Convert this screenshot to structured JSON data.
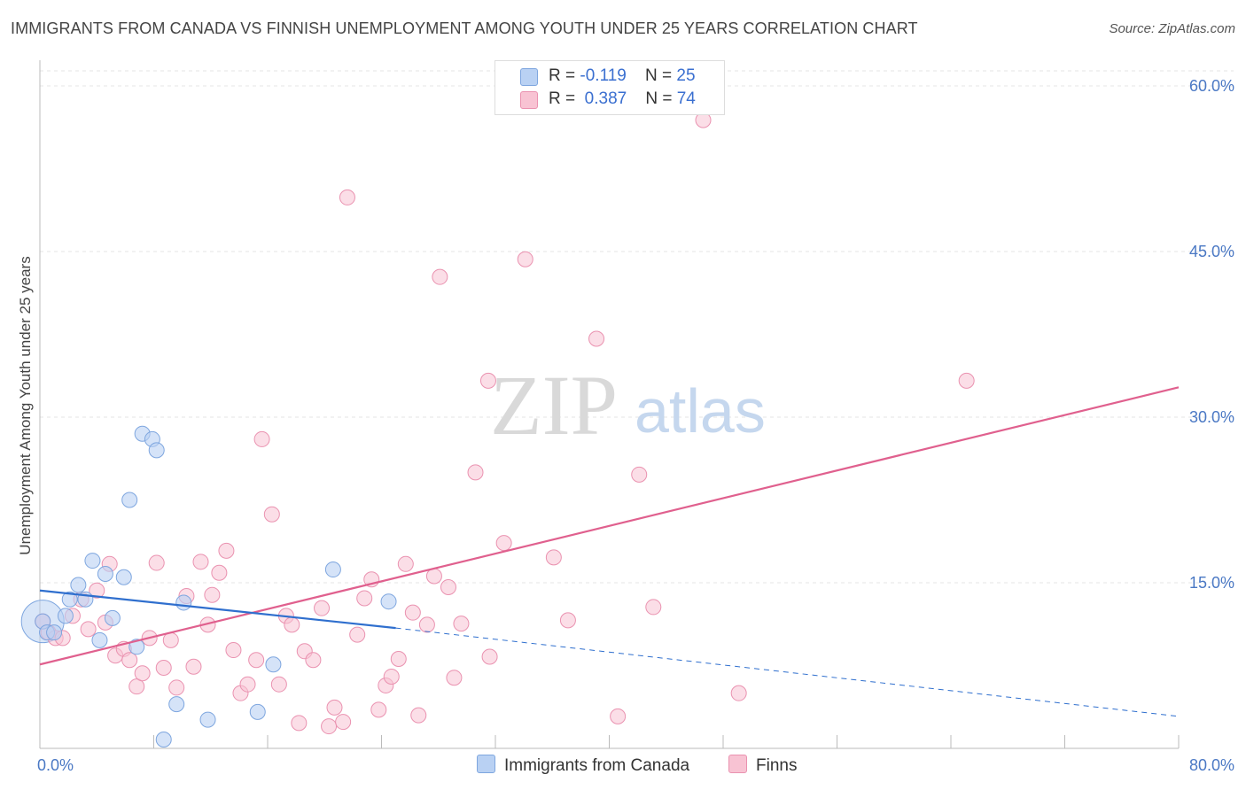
{
  "header": {
    "title": "IMMIGRANTS FROM CANADA VS FINNISH UNEMPLOYMENT AMONG YOUTH UNDER 25 YEARS CORRELATION CHART",
    "source": "Source: ZipAtlas.com"
  },
  "watermark": {
    "zip": "ZIP",
    "atlas": "atlas"
  },
  "legend": {
    "rows": [
      {
        "r_label": "R =",
        "r_value": "-0.119",
        "n_label": "N =",
        "n_value": "25"
      },
      {
        "r_label": "R =",
        "r_value": "0.387",
        "n_label": "N =",
        "n_value": "74"
      }
    ]
  },
  "bottom_legend": {
    "series_1": "Immigrants from Canada",
    "series_2": "Finns"
  },
  "colors": {
    "canada_fill": "#b9d1f3",
    "canada_stroke": "#7ea6df",
    "canada_line": "#2f6fce",
    "finns_fill": "#f8c3d3",
    "finns_stroke": "#ea92b0",
    "finns_line": "#e0608e",
    "tick_text": "#4a78c4",
    "grid": "#e4e4e4"
  },
  "chart_data": {
    "type": "scatter",
    "title": "IMMIGRANTS FROM CANADA VS FINNISH UNEMPLOYMENT AMONG YOUTH UNDER 25 YEARS CORRELATION CHART",
    "xlabel": "",
    "ylabel": "Unemployment Among Youth under 25 years",
    "xlim": [
      0,
      80
    ],
    "ylim": [
      0,
      63
    ],
    "x_tick_labels": [
      "0.0%",
      "80.0%"
    ],
    "y_ticks": [
      15,
      30,
      45,
      60
    ],
    "y_tick_labels": [
      "15.0%",
      "30.0%",
      "45.0%",
      "60.0%"
    ],
    "grid": true,
    "legend_position": "top-center",
    "series": [
      {
        "name": "Immigrants from Canada",
        "points": [
          [
            0.2,
            11.5
          ],
          [
            0.5,
            10.5
          ],
          [
            1.0,
            10.5
          ],
          [
            1.8,
            12.0
          ],
          [
            2.1,
            13.5
          ],
          [
            2.7,
            14.8
          ],
          [
            3.2,
            13.5
          ],
          [
            3.7,
            17.0
          ],
          [
            4.2,
            9.8
          ],
          [
            4.6,
            15.8
          ],
          [
            5.1,
            11.8
          ],
          [
            5.9,
            15.5
          ],
          [
            6.3,
            22.5
          ],
          [
            6.8,
            9.2
          ],
          [
            7.2,
            28.5
          ],
          [
            7.9,
            28.0
          ],
          [
            8.2,
            27.0
          ],
          [
            8.7,
            0.8
          ],
          [
            9.6,
            4.0
          ],
          [
            10.1,
            13.2
          ],
          [
            11.8,
            2.6
          ],
          [
            15.3,
            3.3
          ],
          [
            16.4,
            7.6
          ],
          [
            20.6,
            16.2
          ],
          [
            24.5,
            13.3
          ]
        ],
        "trend": {
          "x_start": 0,
          "y_start": 14.3,
          "x_solid_end": 25,
          "y_solid_end": 10.9,
          "x_end": 80,
          "y_end": 2.9
        }
      },
      {
        "name": "Finns",
        "points": [
          [
            0.6,
            10.5
          ],
          [
            1.1,
            10.0
          ],
          [
            1.6,
            10.0
          ],
          [
            2.3,
            12.0
          ],
          [
            2.9,
            13.5
          ],
          [
            3.4,
            10.8
          ],
          [
            4.0,
            14.3
          ],
          [
            4.6,
            11.4
          ],
          [
            4.9,
            16.7
          ],
          [
            5.3,
            8.4
          ],
          [
            5.9,
            9.0
          ],
          [
            6.3,
            8.0
          ],
          [
            6.8,
            5.6
          ],
          [
            7.2,
            6.8
          ],
          [
            7.7,
            10.0
          ],
          [
            8.2,
            16.8
          ],
          [
            8.7,
            7.3
          ],
          [
            9.2,
            9.8
          ],
          [
            9.6,
            5.5
          ],
          [
            10.3,
            13.8
          ],
          [
            10.8,
            7.4
          ],
          [
            11.3,
            16.9
          ],
          [
            11.8,
            11.2
          ],
          [
            12.1,
            13.9
          ],
          [
            12.6,
            15.9
          ],
          [
            13.1,
            17.9
          ],
          [
            13.6,
            8.9
          ],
          [
            14.1,
            5.0
          ],
          [
            14.6,
            5.8
          ],
          [
            15.2,
            8.0
          ],
          [
            15.6,
            28.0
          ],
          [
            16.3,
            21.2
          ],
          [
            16.8,
            5.8
          ],
          [
            17.3,
            12.0
          ],
          [
            17.7,
            11.2
          ],
          [
            18.2,
            2.3
          ],
          [
            18.6,
            8.8
          ],
          [
            19.2,
            8.0
          ],
          [
            19.8,
            12.7
          ],
          [
            20.3,
            2.0
          ],
          [
            20.7,
            3.7
          ],
          [
            21.3,
            2.4
          ],
          [
            21.6,
            49.9
          ],
          [
            22.3,
            10.3
          ],
          [
            22.8,
            13.6
          ],
          [
            23.3,
            15.3
          ],
          [
            23.8,
            3.5
          ],
          [
            24.3,
            5.7
          ],
          [
            24.7,
            6.5
          ],
          [
            25.2,
            8.1
          ],
          [
            25.7,
            16.7
          ],
          [
            26.2,
            12.3
          ],
          [
            26.6,
            3.0
          ],
          [
            27.2,
            11.2
          ],
          [
            27.7,
            15.6
          ],
          [
            28.1,
            42.7
          ],
          [
            28.7,
            14.6
          ],
          [
            29.1,
            6.4
          ],
          [
            29.6,
            11.3
          ],
          [
            30.6,
            25.0
          ],
          [
            31.6,
            8.3
          ],
          [
            31.5,
            33.3
          ],
          [
            32.6,
            18.6
          ],
          [
            34.1,
            44.3
          ],
          [
            36.1,
            17.3
          ],
          [
            37.1,
            11.6
          ],
          [
            39.1,
            37.1
          ],
          [
            40.6,
            2.9
          ],
          [
            42.1,
            24.8
          ],
          [
            43.1,
            12.8
          ],
          [
            46.6,
            56.9
          ],
          [
            49.1,
            5.0
          ],
          [
            65.1,
            33.3
          ],
          [
            0.2,
            11.5
          ]
        ],
        "trend": {
          "x_start": 0,
          "y_start": 7.6,
          "x_end": 80,
          "y_end": 32.7
        }
      }
    ]
  }
}
